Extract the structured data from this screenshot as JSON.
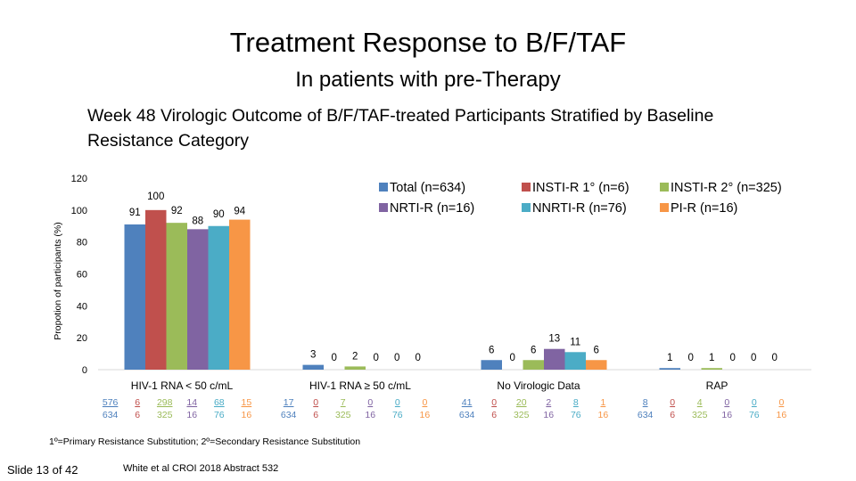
{
  "slide": {
    "title": "Treatment Response to B/F/TAF",
    "subtitle": "In patients with pre-Therapy",
    "footnote": "1º=Primary Resistance Substitution; 2º=Secondary Resistance Substitution",
    "slide_number": "Slide 13 of 42",
    "citation": "White et al CROI 2018 Abstract 532"
  },
  "chart_data": {
    "type": "bar",
    "title": "Week 48 Virologic Outcome of B/F/TAF-treated Participants Stratified by Baseline Resistance Category",
    "ylabel": "Propotion of participants (%)",
    "xlabel": "",
    "ylim": [
      0,
      120
    ],
    "yticks": [
      0,
      20,
      40,
      60,
      80,
      100,
      120
    ],
    "grid": false,
    "legend_position": "top-right",
    "categories": [
      "HIV-1 RNA < 50 c/mL",
      "HIV-1 RNA  ≥ 50 c/mL",
      "No Virologic Data",
      "RAP"
    ],
    "series": [
      {
        "name": "Total (n=634)",
        "color": "#4F81BD",
        "values": [
          91,
          3,
          6,
          1
        ],
        "numerators": [
          "576",
          "17",
          "41",
          "8"
        ],
        "denominators": [
          "634",
          "634",
          "634",
          "634"
        ]
      },
      {
        "name": "INSTI-R 1° (n=6)",
        "color": "#C0504D",
        "values": [
          100,
          0,
          0,
          0
        ],
        "numerators": [
          "6",
          "0",
          "0",
          "0"
        ],
        "denominators": [
          "6",
          "6",
          "6",
          "6"
        ]
      },
      {
        "name": "INSTI-R 2° (n=325)",
        "color": "#9BBB59",
        "values": [
          92,
          2,
          6,
          1
        ],
        "numerators": [
          "298",
          "7",
          "20",
          "4"
        ],
        "denominators": [
          "325",
          "325",
          "325",
          "325"
        ]
      },
      {
        "name": "NRTI-R (n=16)",
        "color": "#8064A2",
        "values": [
          88,
          0,
          13,
          0
        ],
        "numerators": [
          "14",
          "0",
          "2",
          "0"
        ],
        "denominators": [
          "16",
          "16",
          "16",
          "16"
        ]
      },
      {
        "name": "NNRTI-R (n=76)",
        "color": "#4BACC6",
        "values": [
          90,
          0,
          11,
          0
        ],
        "numerators": [
          "68",
          "0",
          "8",
          "0"
        ],
        "denominators": [
          "76",
          "76",
          "76",
          "76"
        ]
      },
      {
        "name": "PI-R (n=16)",
        "color": "#F79646",
        "values": [
          94,
          0,
          6,
          0
        ],
        "numerators": [
          "15",
          "0",
          "1",
          "0"
        ],
        "denominators": [
          "16",
          "16",
          "16",
          "16"
        ]
      }
    ]
  }
}
